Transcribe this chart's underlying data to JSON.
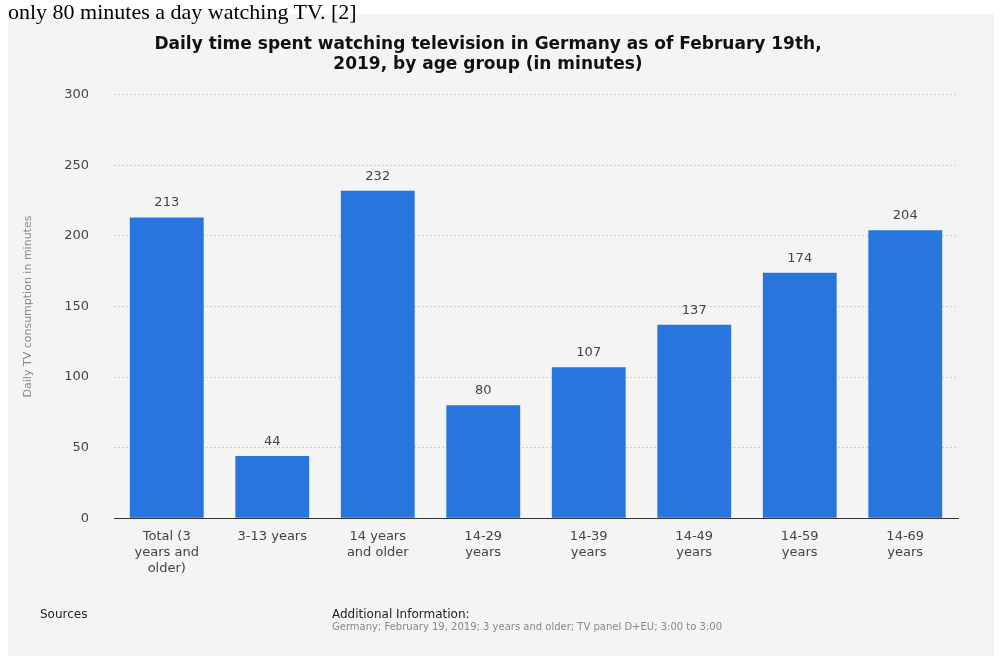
{
  "chart_data": {
    "type": "bar",
    "title": "Daily time spent watching television in Germany as of February 19th, 2019, by age group (in minutes)",
    "ylabel": "Daily TV consumption in minutes",
    "categories": [
      "Total (3 years and older)",
      "3-13 years",
      "14 years and older",
      "14-29 years",
      "14-39 years",
      "14-49 years",
      "14-59 years",
      "14-69 years"
    ],
    "values": [
      213,
      44,
      232,
      80,
      107,
      137,
      174,
      204
    ],
    "color": "#2876dd",
    "ylim": [
      0,
      300
    ],
    "yticks": [
      0,
      50,
      100,
      150,
      200,
      250,
      300
    ],
    "grid": "y",
    "data_labels": true,
    "annotations": [
      "only 80 minutes a day watching TV. [2]",
      "Sources",
      "Additional Information:",
      "Germany; February 19, 2019; 3 years and older; TV panel D+EU; 3:00 to 3:00"
    ]
  }
}
